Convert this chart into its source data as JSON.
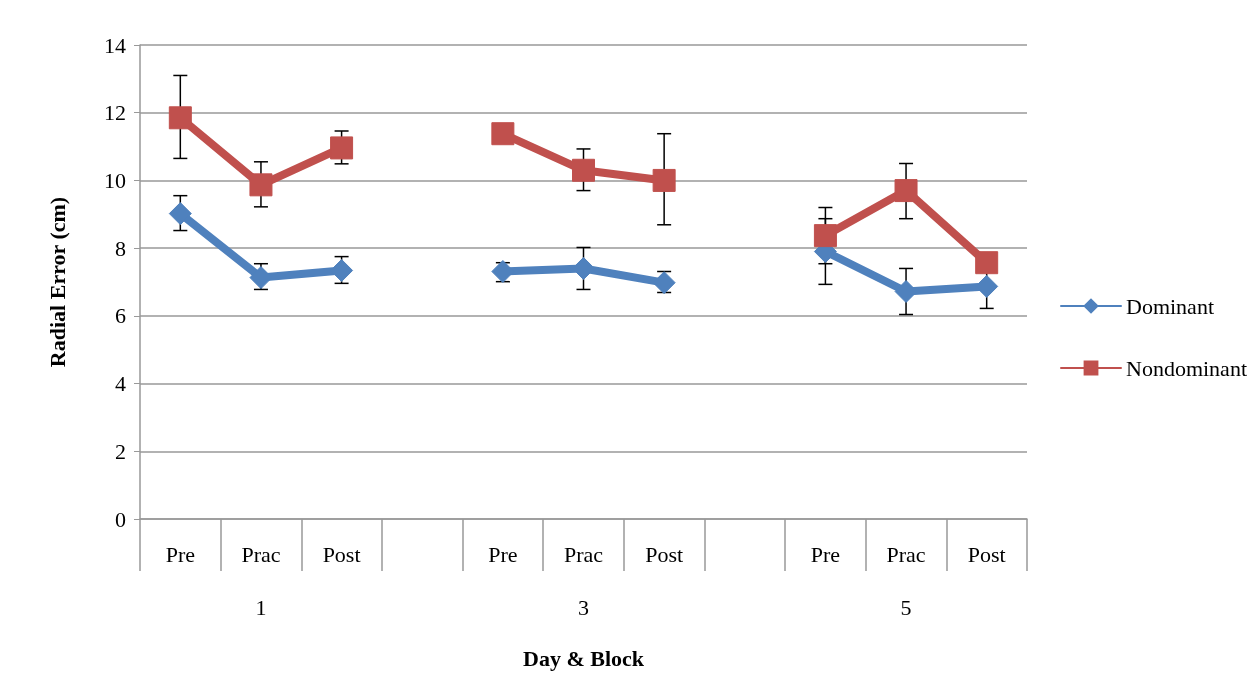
{
  "chart_data": {
    "type": "line",
    "xlabel": "Day & Block",
    "ylabel": "Radial Error (cm)",
    "categories": [
      "Pre",
      "Prac",
      "Post",
      null,
      "Pre",
      "Prac",
      "Post",
      null,
      "Pre",
      "Prac",
      "Post"
    ],
    "series": [
      {
        "name": "Dominant",
        "color": "#4f81bd",
        "marker": "diamond",
        "values": [
          9.02,
          7.13,
          7.34,
          null,
          7.31,
          7.4,
          6.98,
          null,
          7.9,
          6.72,
          6.87
        ],
        "errors": [
          [
            8.52,
            9.55
          ],
          [
            6.78,
            7.54
          ],
          [
            6.96,
            7.75
          ],
          null,
          [
            7.01,
            7.57
          ],
          [
            6.78,
            8.02
          ],
          [
            6.69,
            7.31
          ],
          null,
          0.97,
          [
            6.04,
            7.4
          ],
          0.65
        ]
      },
      {
        "name": "Nondominant",
        "color": "#c0504d",
        "marker": "square",
        "values": [
          11.85,
          9.87,
          10.96,
          null,
          11.38,
          10.3,
          10.0,
          null,
          8.37,
          9.7,
          7.57
        ],
        "errors": [
          [
            10.65,
            13.1
          ],
          [
            9.22,
            10.55
          ],
          [
            10.49,
            11.46
          ],
          null,
          null,
          [
            9.7,
            10.93
          ],
          [
            8.69,
            11.38
          ],
          null,
          0.83,
          [
            8.87,
            10.5
          ],
          null
        ]
      }
    ],
    "ylim": [
      0,
      14
    ],
    "yticks": [
      0,
      2,
      4,
      6,
      8,
      10,
      12,
      14
    ],
    "grid": "y",
    "legend": "right",
    "annotations": [
      "1",
      "3",
      "5"
    ]
  }
}
